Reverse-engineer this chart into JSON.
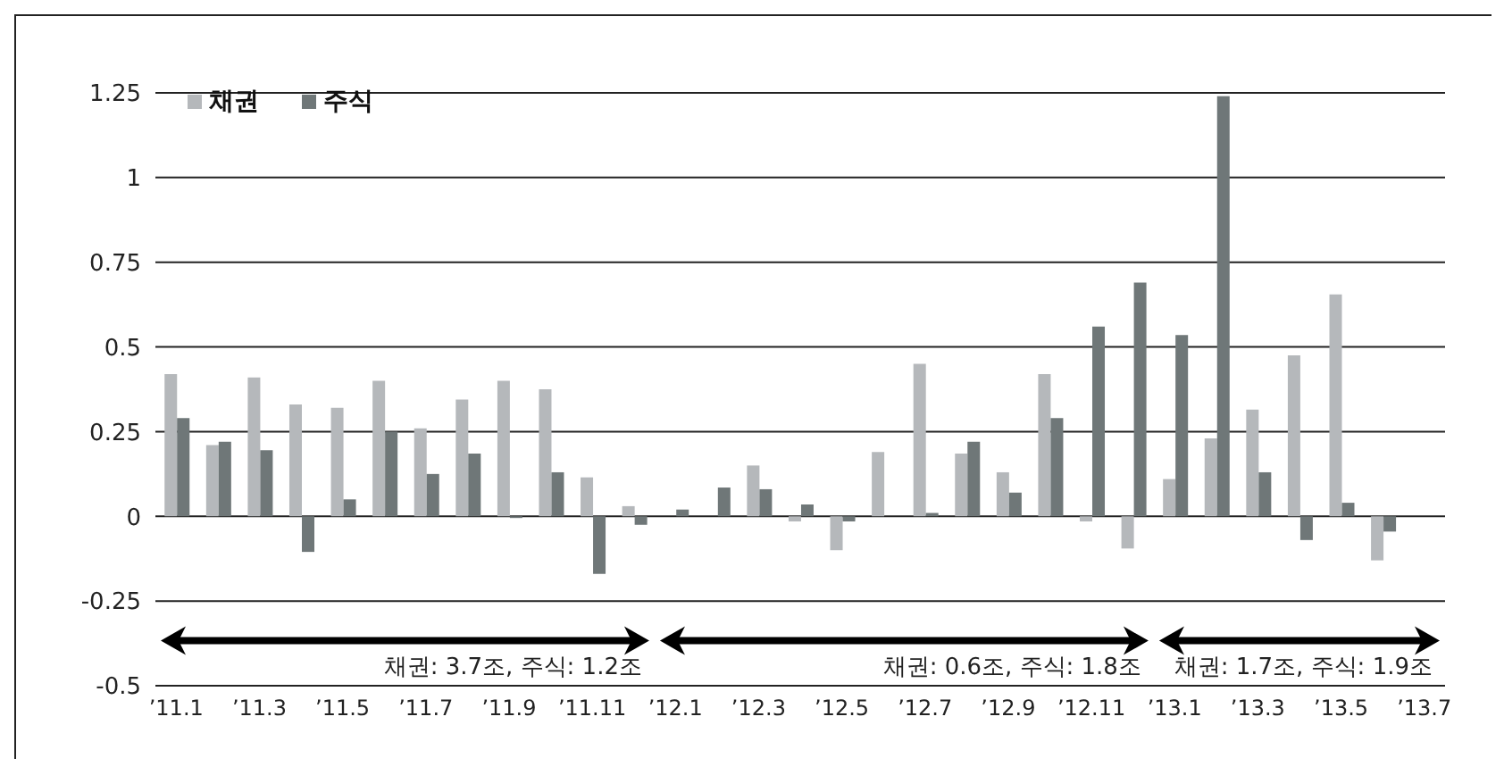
{
  "chart_data": {
    "type": "bar",
    "categories": [
      "’11.1",
      null,
      "’11.3",
      null,
      "’11.5",
      null,
      "’11.7",
      null,
      "’11.9",
      null,
      "’11.11",
      null,
      "’12.1",
      null,
      "’12.3",
      null,
      "’12.5",
      null,
      "’12.7",
      null,
      "’12.9",
      null,
      "’12.11",
      null,
      "’13.1",
      null,
      "’13.3",
      null,
      "’13.5",
      null,
      "’13.7"
    ],
    "series": [
      {
        "name": "채권",
        "color": "#b5b8bb",
        "values": [
          0.42,
          0.21,
          0.41,
          0.33,
          0.32,
          0.4,
          0.26,
          0.345,
          0.4,
          0.375,
          0.115,
          0.03,
          0,
          0,
          0.15,
          -0.015,
          -0.1,
          0.19,
          0.45,
          0.185,
          0.13,
          0.42,
          -0.015,
          -0.095,
          0.11,
          0.23,
          0.315,
          0.475,
          0.655,
          -0.13,
          null
        ]
      },
      {
        "name": "주식",
        "color": "#6f7778",
        "values": [
          0.29,
          0.22,
          0.195,
          -0.105,
          0.05,
          0.25,
          0.125,
          0.185,
          -0.005,
          0.13,
          -0.17,
          -0.025,
          0.02,
          0.085,
          0.08,
          0.035,
          -0.015,
          0,
          0.01,
          0.22,
          0.07,
          0.29,
          0.56,
          0.69,
          0.535,
          1.24,
          0.13,
          -0.07,
          0.04,
          -0.045,
          null
        ]
      }
    ],
    "ylim": [
      -0.5,
      1.25
    ],
    "yticks": [
      {
        "value": -0.5,
        "label": "-0.5"
      },
      {
        "value": -0.25,
        "label": "-0.25"
      },
      {
        "value": 0,
        "label": "0"
      },
      {
        "value": 0.25,
        "label": "0.25"
      },
      {
        "value": 0.5,
        "label": "0.5"
      },
      {
        "value": 0.75,
        "label": "0.75"
      },
      {
        "value": 1,
        "label": "1"
      },
      {
        "value": 1.25,
        "label": "1.25"
      }
    ],
    "grid": "y",
    "legend": "top left",
    "annotations": [
      "채권: 3.7조, 주식: 1.2조",
      "채권: 0.6조, 주식: 1.8조",
      "채권: 1.7조, 주식: 1.9조"
    ]
  }
}
